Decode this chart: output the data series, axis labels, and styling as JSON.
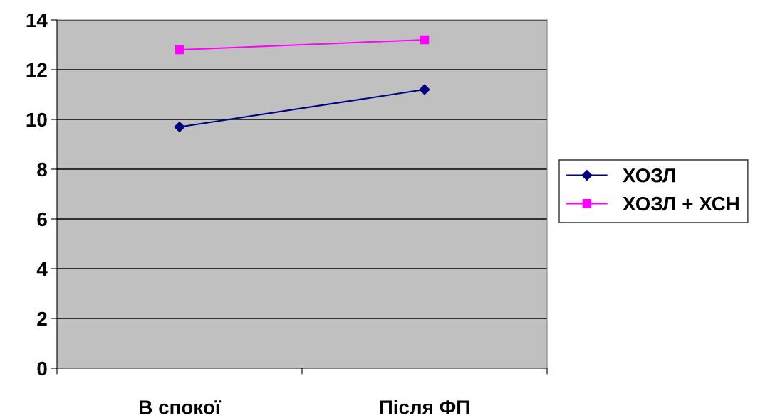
{
  "chart_data": {
    "type": "line",
    "categories": [
      "В спокої",
      "Після ФП"
    ],
    "series": [
      {
        "name": "ХОЗЛ",
        "color": "#000080",
        "values": [
          9.7,
          11.2
        ],
        "marker": "diamond"
      },
      {
        "name": "ХОЗЛ + ХСН",
        "color": "#ff00ff",
        "values": [
          12.8,
          13.2
        ],
        "marker": "square"
      }
    ],
    "ylim": [
      0,
      14
    ],
    "yticks": [
      0,
      2,
      4,
      6,
      8,
      10,
      12,
      14
    ],
    "grid": "y",
    "legend": "right",
    "line_style": "solid"
  }
}
